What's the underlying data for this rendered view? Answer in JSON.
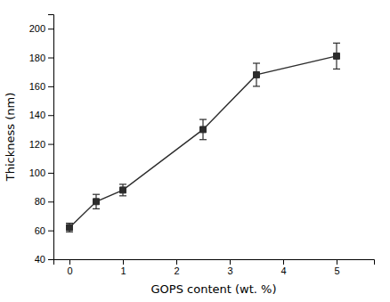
{
  "chart_data": {
    "type": "line",
    "x": [
      0,
      0.5,
      1.0,
      2.5,
      3.5,
      5.0
    ],
    "series": [
      {
        "values": [
          62,
          80,
          88,
          130,
          168,
          181
        ],
        "errors": [
          3,
          5,
          4,
          7,
          8,
          9
        ],
        "color": "#2c2c2c",
        "marker": "square",
        "line_style": "solid"
      }
    ],
    "xlabel": "GOPS content (wt. %)",
    "ylabel": "Thickness (nm)",
    "xlim": [
      -0.3,
      5.7
    ],
    "ylim": [
      40,
      210
    ],
    "xticks": [
      0,
      1,
      2,
      3,
      4,
      5
    ],
    "yticks": [
      40,
      60,
      80,
      100,
      120,
      140,
      160,
      180,
      200
    ],
    "grid": false
  }
}
